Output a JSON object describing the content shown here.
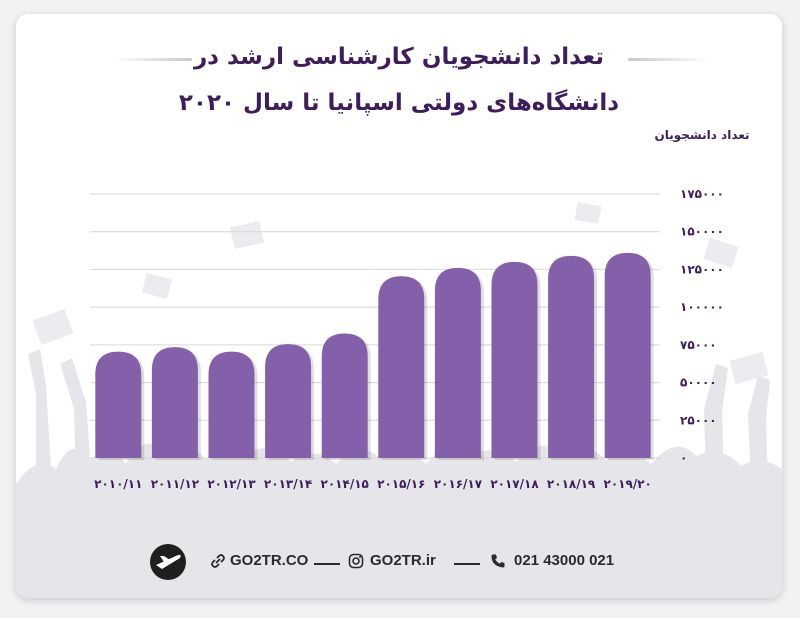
{
  "title": {
    "line1": "تعداد دانشجویان کارشناسی ارشد در",
    "line2": "دانشگاه‌های دولتی اسپانیا تا سال ۲۰۲۰"
  },
  "chart_data": {
    "type": "bar",
    "categories": [
      "۲۰۱۰/۱۱",
      "۲۰۱۱/۱۲",
      "۲۰۱۲/۱۳",
      "۲۰۱۳/۱۴",
      "۲۰۱۴/۱۵",
      "۲۰۱۵/۱۶",
      "۲۰۱۶/۱۷",
      "۲۰۱۷/۱۸",
      "۲۰۱۸/۱۹",
      "۲۰۱۹/۲۰"
    ],
    "values": [
      70500,
      73500,
      70500,
      75500,
      82500,
      120500,
      126000,
      130000,
      134000,
      136000
    ],
    "ylabel": "تعداد دانشجویان",
    "ylim": [
      0,
      175000
    ],
    "yticks": [
      0,
      25000,
      50000,
      75000,
      100000,
      125000,
      150000,
      175000
    ],
    "ytick_labels": [
      "۰",
      "۲۵۰۰۰",
      "۵۰۰۰۰",
      "۷۵۰۰۰",
      "۱۰۰۰۰۰",
      "۱۲۵۰۰۰",
      "۱۵۰۰۰۰",
      "۱۷۵۰۰۰"
    ],
    "bar_color": "#8460aa",
    "grid": true
  },
  "footer": {
    "website": "GO2TR.CO",
    "instagram": "GO2TR.ir",
    "phone": "021 43000 021"
  },
  "colors": {
    "title": "#3d1d5c",
    "bar": "#8460aa",
    "grid": "#d6d6da"
  },
  "icons": [
    "airplane-logo-icon",
    "link-icon",
    "instagram-icon",
    "phone-icon"
  ]
}
